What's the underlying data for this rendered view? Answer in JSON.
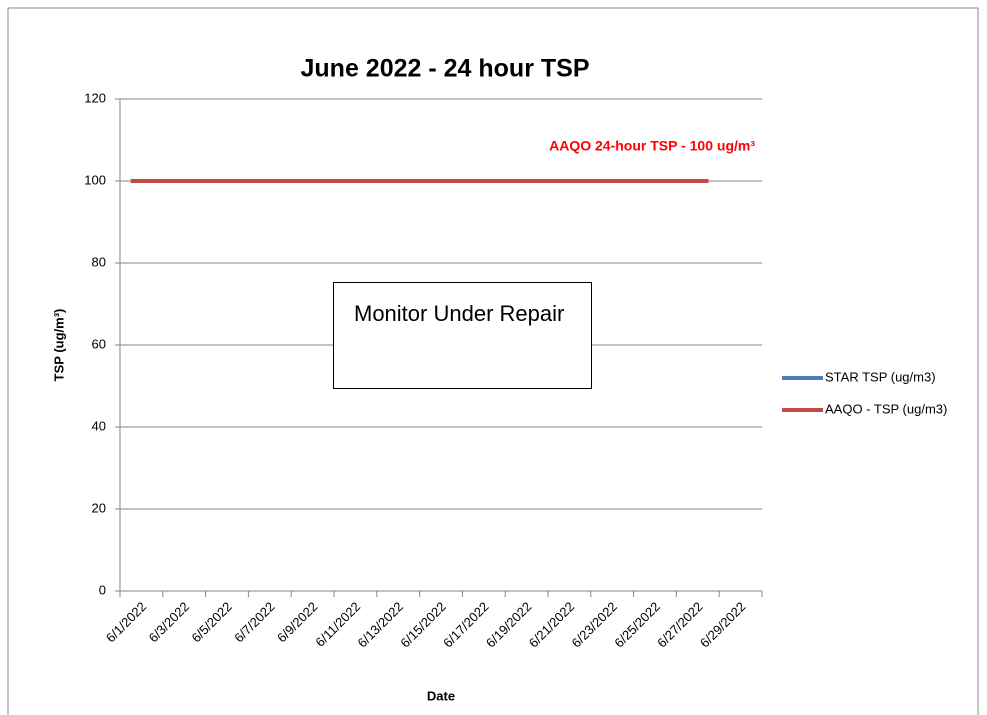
{
  "chart_data": {
    "type": "line",
    "title": "June 2022 - 24 hour TSP",
    "x_label": "Date",
    "y_label": "TSP (ug/m³)",
    "categories": [
      "6/1/2022",
      null,
      "6/3/2022",
      null,
      "6/5/2022",
      null,
      "6/7/2022",
      null,
      "6/9/2022",
      null,
      "6/11/2022",
      null,
      "6/13/2022",
      null,
      "6/15/2022",
      null,
      "6/17/2022",
      null,
      "6/19/2022",
      null,
      "6/21/2022",
      null,
      "6/23/2022",
      null,
      "6/25/2022",
      null,
      "6/27/2022",
      null,
      "6/29/2022",
      null
    ],
    "series": [
      {
        "name": "STAR TSP (ug/m3)",
        "color": "#4a7ebb",
        "values": [
          null,
          null,
          null,
          null,
          null,
          null,
          null,
          null,
          null,
          null,
          null,
          null,
          null,
          null,
          null,
          null,
          null,
          null,
          null,
          null,
          null,
          null,
          null,
          null,
          null,
          null,
          null,
          null,
          null,
          null
        ]
      },
      {
        "name": "AAQO - TSP (ug/m3)",
        "color": "#be4b48",
        "values": [
          100,
          100,
          100,
          100,
          100,
          100,
          100,
          100,
          100,
          100,
          100,
          100,
          100,
          100,
          100,
          100,
          100,
          100,
          100,
          100,
          100,
          100,
          100,
          100,
          100,
          100,
          100,
          100,
          null,
          null
        ]
      }
    ],
    "annotations": [
      "AAQO 24-hour TSP - 100 ug/m³",
      "Monitor Under Repair"
    ],
    "ylim": [
      0,
      120
    ],
    "yticks": [
      0,
      20,
      40,
      60,
      80,
      100,
      120
    ],
    "grid": true,
    "legend": "right"
  }
}
